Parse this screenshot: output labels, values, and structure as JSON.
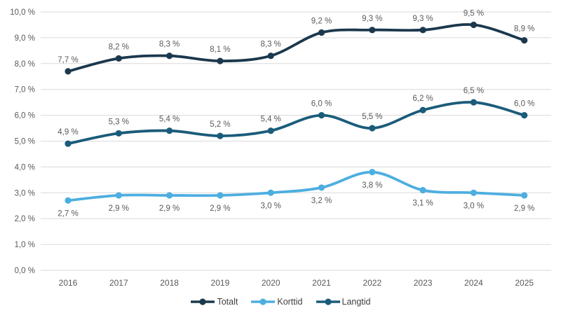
{
  "chart_data": {
    "type": "line",
    "title": "",
    "xlabel": "",
    "ylabel": "",
    "categories": [
      "2016",
      "2017",
      "2018",
      "2019",
      "2020",
      "2021",
      "2022",
      "2023",
      "2024",
      "2025"
    ],
    "series": [
      {
        "name": "Totalt",
        "color": "#1b384d",
        "values": [
          7.7,
          8.2,
          8.3,
          8.1,
          8.3,
          9.2,
          9.3,
          9.3,
          9.5,
          8.9
        ],
        "labels": [
          "7,7 %",
          "8,2 %",
          "8,3 %",
          "8,1 %",
          "8,3 %",
          "9,2 %",
          "9,3 %",
          "9,3 %",
          "9,5 %",
          "8,9 %"
        ],
        "label_position": "above"
      },
      {
        "name": "Korttid",
        "color": "#4daee0",
        "values": [
          2.7,
          2.9,
          2.9,
          2.9,
          3.0,
          3.2,
          3.8,
          3.1,
          3.0,
          2.9
        ],
        "labels": [
          "2,7 %",
          "2,9 %",
          "2,9 %",
          "2,9 %",
          "3,0 %",
          "3,2 %",
          "3,8 %",
          "3,1 %",
          "3,0 %",
          "2,9 %"
        ],
        "label_position": "below"
      },
      {
        "name": "Langtid",
        "color": "#1a5c7a",
        "values": [
          4.9,
          5.3,
          5.4,
          5.2,
          5.4,
          6.0,
          5.5,
          6.2,
          6.5,
          6.0
        ],
        "labels": [
          "4,9 %",
          "5,3 %",
          "5,4 %",
          "5,2 %",
          "5,4 %",
          "6,0 %",
          "5,5 %",
          "6,2 %",
          "6,5 %",
          "6,0 %"
        ],
        "label_position": "above"
      }
    ],
    "y_ticks": [
      "0,0 %",
      "1,0 %",
      "2,0 %",
      "3,0 %",
      "4,0 %",
      "5,0 %",
      "6,0 %",
      "7,0 %",
      "8,0 %",
      "9,0 %",
      "10,0 %"
    ],
    "ylim": [
      0,
      10
    ],
    "grid": true,
    "legend_position": "bottom",
    "colors": {
      "gridline": "#d9d9d9",
      "tick_label": "#595959",
      "data_label": "#595959",
      "legend_text": "#404040",
      "background": "#ffffff"
    }
  }
}
